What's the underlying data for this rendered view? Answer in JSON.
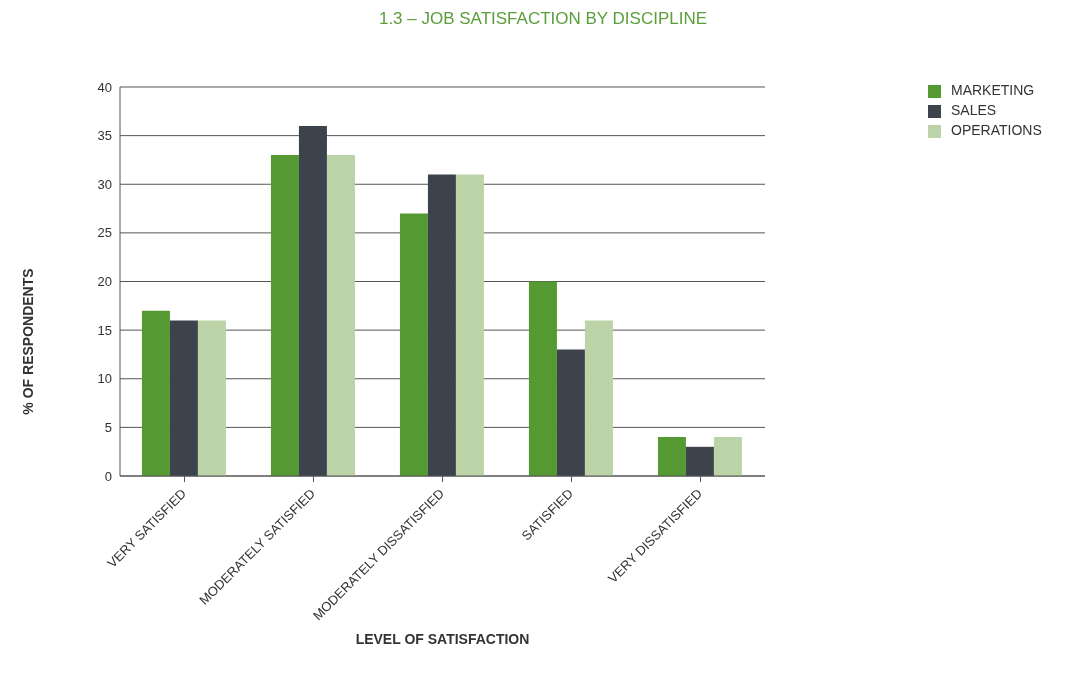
{
  "chart_data": {
    "type": "bar",
    "title": "1.3 – JOB SATISFACTION BY DISCIPLINE",
    "xlabel": "LEVEL OF SATISFACTION",
    "ylabel": "% OF RESPONDENTS",
    "categories": [
      "VERY SATISFIED",
      "MODERATELY SATISFIED",
      "MODERATELY DISSATISFIED",
      "SATISFIED",
      "VERY DISSATISFIED"
    ],
    "series": [
      {
        "name": "MARKETING",
        "color": "#559933",
        "values": [
          17,
          33,
          27,
          20,
          4
        ]
      },
      {
        "name": "SALES",
        "color": "#3d434c",
        "values": [
          16,
          36,
          31,
          13,
          3
        ]
      },
      {
        "name": "OPERATIONS",
        "color": "#bcd3a8",
        "values": [
          16,
          33,
          31,
          16,
          4
        ]
      }
    ],
    "ylim": [
      0,
      40
    ],
    "yticks": [
      0,
      5,
      10,
      15,
      20,
      25,
      30,
      35,
      40
    ],
    "grid": "y",
    "legend": "top right"
  }
}
